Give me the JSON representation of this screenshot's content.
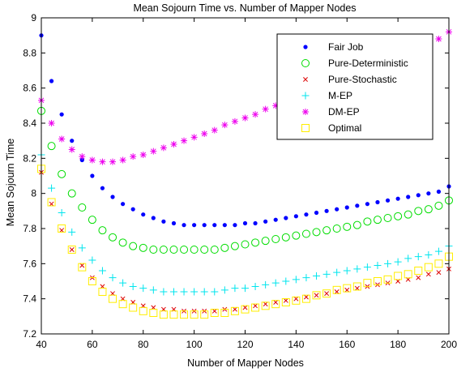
{
  "chart_data": {
    "type": "scatter",
    "title": "Mean Sojourn Time vs. Number of Mapper Nodes",
    "xlabel": "Number of Mapper Nodes",
    "ylabel": "Mean Sojourn Time",
    "xlim": [
      40,
      200
    ],
    "ylim": [
      7.2,
      9
    ],
    "xticks": [
      40,
      60,
      80,
      100,
      120,
      140,
      160,
      180,
      200
    ],
    "yticks": [
      7.2,
      7.4,
      7.6,
      7.8,
      8,
      8.2,
      8.4,
      8.6,
      8.8,
      9
    ],
    "xtick_labels": [
      "40",
      "60",
      "80",
      "100",
      "120",
      "140",
      "160",
      "180",
      "200"
    ],
    "ytick_labels": [
      "7.2",
      "7.4",
      "7.6",
      "7.8",
      "8",
      "8.2",
      "8.4",
      "8.6",
      "8.8",
      "9"
    ],
    "grid": false,
    "legend_position": "top-right",
    "x": [
      40,
      44,
      48,
      52,
      56,
      60,
      64,
      68,
      72,
      76,
      80,
      84,
      88,
      92,
      96,
      100,
      104,
      108,
      112,
      116,
      120,
      124,
      128,
      132,
      136,
      140,
      144,
      148,
      152,
      156,
      160,
      164,
      168,
      172,
      176,
      180,
      184,
      188,
      192,
      196,
      200
    ],
    "series": [
      {
        "name": "Fair Job",
        "marker": "dot",
        "color": "#0000ff",
        "values": [
          8.9,
          8.64,
          8.45,
          8.3,
          8.19,
          8.1,
          8.03,
          7.98,
          7.94,
          7.91,
          7.88,
          7.86,
          7.84,
          7.83,
          7.82,
          7.82,
          7.82,
          7.82,
          7.82,
          7.82,
          7.83,
          7.83,
          7.84,
          7.85,
          7.86,
          7.87,
          7.88,
          7.89,
          7.9,
          7.91,
          7.92,
          7.93,
          7.94,
          7.95,
          7.96,
          7.97,
          7.98,
          7.99,
          8.0,
          8.01,
          8.04
        ]
      },
      {
        "name": "Pure-Deterministic",
        "marker": "circle",
        "color": "#00dd00",
        "values": [
          8.47,
          8.27,
          8.11,
          8.0,
          7.92,
          7.85,
          7.79,
          7.75,
          7.72,
          7.7,
          7.69,
          7.68,
          7.68,
          7.68,
          7.68,
          7.68,
          7.68,
          7.68,
          7.69,
          7.7,
          7.71,
          7.72,
          7.73,
          7.74,
          7.75,
          7.76,
          7.77,
          7.78,
          7.79,
          7.8,
          7.81,
          7.82,
          7.84,
          7.85,
          7.86,
          7.87,
          7.88,
          7.9,
          7.91,
          7.93,
          7.96
        ]
      },
      {
        "name": "Pure-Stochastic",
        "marker": "x",
        "color": "#dd0000",
        "values": [
          8.12,
          7.94,
          7.79,
          7.68,
          7.59,
          7.52,
          7.47,
          7.43,
          7.4,
          7.38,
          7.36,
          7.35,
          7.34,
          7.34,
          7.33,
          7.33,
          7.33,
          7.33,
          7.34,
          7.34,
          7.35,
          7.36,
          7.37,
          7.38,
          7.39,
          7.4,
          7.41,
          7.42,
          7.43,
          7.44,
          7.45,
          7.46,
          7.47,
          7.48,
          7.49,
          7.5,
          7.51,
          7.52,
          7.54,
          7.55,
          7.57
        ]
      },
      {
        "name": "M-EP",
        "marker": "plus",
        "color": "#00e5ee",
        "values": [
          8.22,
          8.03,
          7.89,
          7.78,
          7.69,
          7.62,
          7.56,
          7.52,
          7.49,
          7.47,
          7.46,
          7.45,
          7.44,
          7.44,
          7.44,
          7.44,
          7.44,
          7.44,
          7.45,
          7.46,
          7.46,
          7.47,
          7.48,
          7.49,
          7.5,
          7.51,
          7.52,
          7.53,
          7.54,
          7.55,
          7.56,
          7.57,
          7.58,
          7.59,
          7.6,
          7.61,
          7.63,
          7.64,
          7.65,
          7.67,
          7.7
        ]
      },
      {
        "name": "DM-EP",
        "marker": "star",
        "color": "#ee00ee",
        "values": [
          8.53,
          8.4,
          8.31,
          8.25,
          8.21,
          8.19,
          8.18,
          8.18,
          8.19,
          8.21,
          8.22,
          8.24,
          8.26,
          8.28,
          8.3,
          8.32,
          8.34,
          8.36,
          8.39,
          8.41,
          8.43,
          8.45,
          8.48,
          8.5,
          8.52,
          8.54,
          8.57,
          8.59,
          8.61,
          8.63,
          8.65,
          8.67,
          8.69,
          8.72,
          8.74,
          8.76,
          8.78,
          8.8,
          8.83,
          8.88,
          8.92
        ]
      },
      {
        "name": "Optimal",
        "marker": "square",
        "color": "#ffee00",
        "values": [
          8.14,
          7.95,
          7.8,
          7.68,
          7.58,
          7.5,
          7.44,
          7.4,
          7.37,
          7.35,
          7.33,
          7.32,
          7.31,
          7.31,
          7.31,
          7.31,
          7.31,
          7.32,
          7.32,
          7.33,
          7.34,
          7.35,
          7.36,
          7.37,
          7.38,
          7.39,
          7.4,
          7.42,
          7.43,
          7.45,
          7.46,
          7.47,
          7.49,
          7.5,
          7.51,
          7.53,
          7.54,
          7.56,
          7.58,
          7.6,
          7.64
        ]
      }
    ]
  }
}
